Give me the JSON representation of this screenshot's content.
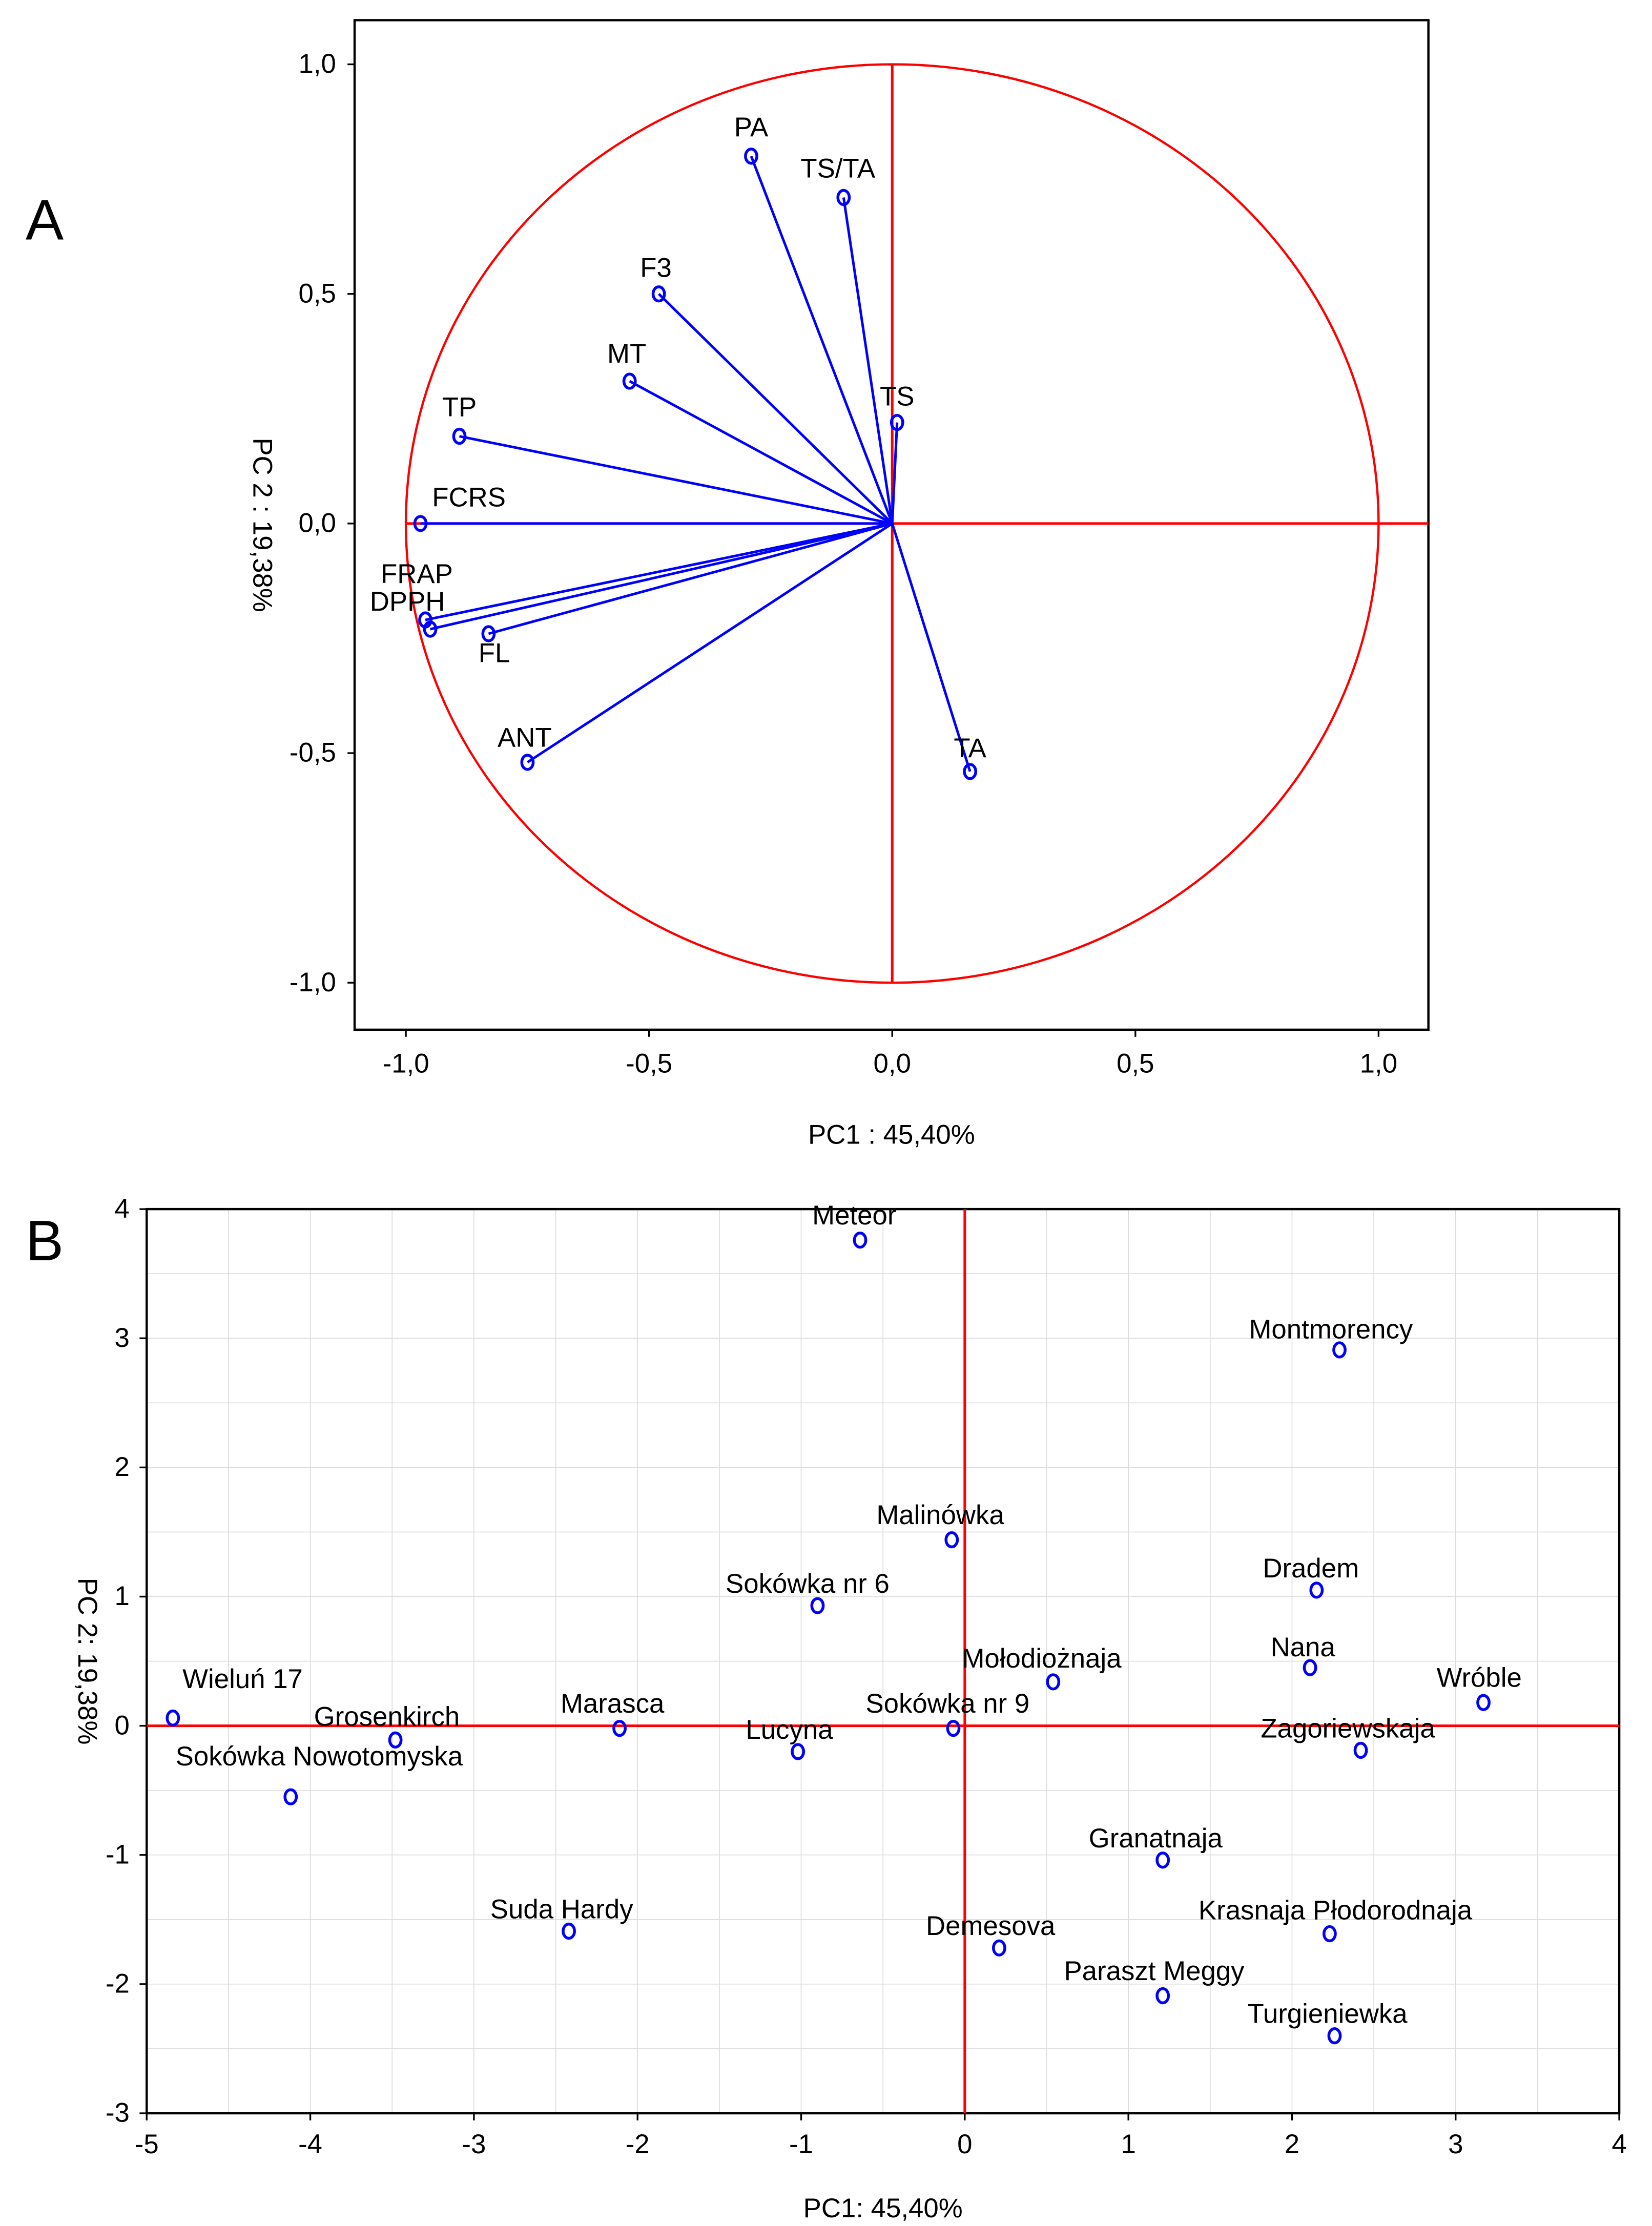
{
  "chart_data": [
    {
      "panel": "A",
      "type": "scatter",
      "subtype": "pca-loadings",
      "xlabel": "PC1 : 45,40%",
      "ylabel": "PC 2 : 19,38%",
      "xlim": [
        -1.1,
        1.1
      ],
      "ylim": [
        -1.1,
        1.1
      ],
      "xticks": [
        "-1,0",
        "-0,5",
        "0,0",
        "0,5",
        "1,0"
      ],
      "xtick_values": [
        -1,
        -0.5,
        0,
        0.5,
        1
      ],
      "yticks": [
        "1,0",
        "0,5",
        "0,0",
        "-0,5",
        "-1,0"
      ],
      "ytick_values": [
        1,
        0.5,
        0,
        -0.5,
        -1
      ],
      "unit_circle": true,
      "colors": {
        "points": "#0000ff",
        "axes": "#ff0000"
      },
      "points": [
        {
          "label": "PA",
          "x": -0.29,
          "y": 0.8
        },
        {
          "label": "TS/TA",
          "x": -0.1,
          "y": 0.71
        },
        {
          "label": "F3",
          "x": -0.48,
          "y": 0.5
        },
        {
          "label": "MT",
          "x": -0.54,
          "y": 0.31
        },
        {
          "label": "TS",
          "x": 0.01,
          "y": 0.22
        },
        {
          "label": "TP",
          "x": -0.89,
          "y": 0.19
        },
        {
          "label": "FCRS",
          "x": -0.97,
          "y": 0.0
        },
        {
          "label": "FRAP",
          "x": -0.96,
          "y": -0.21
        },
        {
          "label": "DPPH",
          "x": -0.95,
          "y": -0.23
        },
        {
          "label": "FL",
          "x": -0.83,
          "y": -0.24
        },
        {
          "label": "ANT",
          "x": -0.75,
          "y": -0.52
        },
        {
          "label": "TA",
          "x": 0.16,
          "y": -0.54
        }
      ]
    },
    {
      "panel": "B",
      "type": "scatter",
      "subtype": "pca-scores",
      "xlabel": "PC1: 45,40%",
      "ylabel": "PC 2: 19,38%",
      "xlim": [
        -5,
        4
      ],
      "ylim": [
        -3,
        4
      ],
      "xticks": [
        "-5",
        "-4",
        "-3",
        "-2",
        "-1",
        "0",
        "1",
        "2",
        "3",
        "4"
      ],
      "xtick_values": [
        -5,
        -4,
        -3,
        -2,
        -1,
        0,
        1,
        2,
        3,
        4
      ],
      "yticks": [
        "4",
        "3",
        "2",
        "1",
        "0",
        "-1",
        "-2",
        "-3"
      ],
      "ytick_values": [
        4,
        3,
        2,
        1,
        0,
        -1,
        -2,
        -3
      ],
      "colors": {
        "points": "#0000ff",
        "axes": "#ff0000"
      },
      "points": [
        {
          "label": "Meteor",
          "x": -0.64,
          "y": 3.76
        },
        {
          "label": "Montmorency",
          "x": 2.29,
          "y": 2.91
        },
        {
          "label": "Malinówka",
          "x": -0.08,
          "y": 1.44
        },
        {
          "label": "Sokówka nr 6",
          "x": -0.9,
          "y": 0.93
        },
        {
          "label": "Dradem",
          "x": 2.15,
          "y": 1.05
        },
        {
          "label": "Nana",
          "x": 2.11,
          "y": 0.45
        },
        {
          "label": "Wróble",
          "x": 3.17,
          "y": 0.18
        },
        {
          "label": "Mołodiożnaja",
          "x": 0.54,
          "y": 0.34
        },
        {
          "label": "Wieluń 17",
          "x": -4.84,
          "y": 0.06
        },
        {
          "label": "Grosenkirch",
          "x": -3.48,
          "y": -0.11
        },
        {
          "label": "Marasca",
          "x": -2.11,
          "y": -0.02
        },
        {
          "label": "Sokówka nr 9",
          "x": -0.07,
          "y": -0.02
        },
        {
          "label": "Lucyna",
          "x": -1.02,
          "y": -0.2
        },
        {
          "label": "Zagoriewskaja",
          "x": 2.42,
          "y": -0.19
        },
        {
          "label": "Sokówka Nowotomyska",
          "x": -4.12,
          "y": -0.55
        },
        {
          "label": "Granatnaja",
          "x": 1.21,
          "y": -1.04
        },
        {
          "label": "Suda Hardy",
          "x": -2.42,
          "y": -1.59
        },
        {
          "label": "Krasnaja Płodorodnaja",
          "x": 2.23,
          "y": -1.61
        },
        {
          "label": "Demesova",
          "x": 0.21,
          "y": -1.72
        },
        {
          "label": "Paraszt Meggy",
          "x": 1.21,
          "y": -2.09
        },
        {
          "label": "Turgieniewka",
          "x": 2.26,
          "y": -2.4
        }
      ]
    }
  ],
  "panels": {
    "a_label": "A",
    "b_label": "B"
  }
}
